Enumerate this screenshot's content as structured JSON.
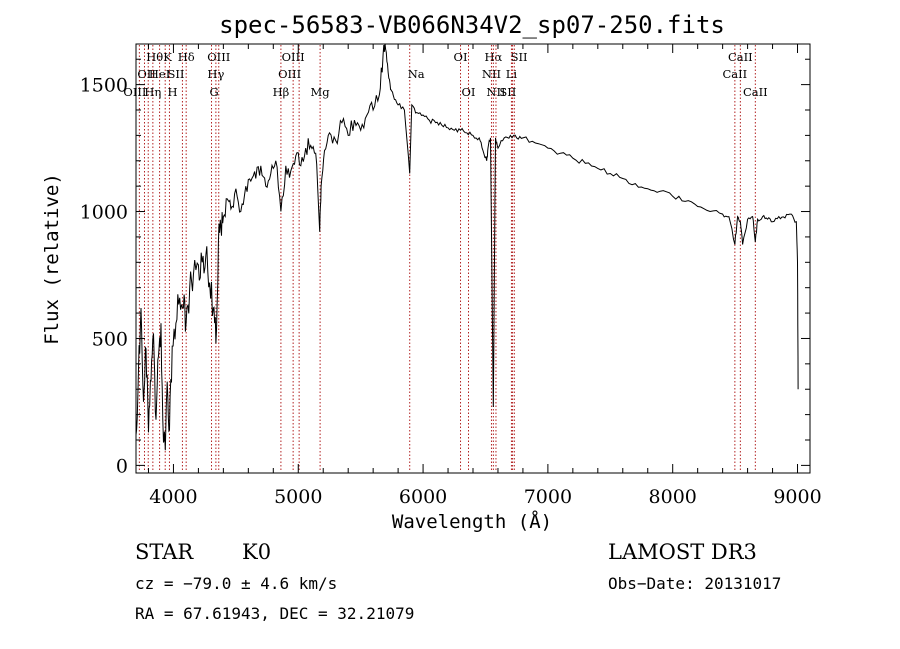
{
  "chart_data": {
    "type": "line",
    "title": "spec-56583-VB066N34V2_sp07-250.fits",
    "xlabel": "Wavelength (Å)",
    "ylabel": "Flux (relative)",
    "xlim": [
      3700,
      9100
    ],
    "ylim": [
      -30,
      1660
    ],
    "xticks": [
      4000,
      5000,
      6000,
      7000,
      8000,
      9000
    ],
    "yticks": [
      0,
      500,
      1000,
      1500
    ],
    "spectrum": {
      "x": [
        3700,
        3720,
        3740,
        3760,
        3780,
        3800,
        3820,
        3840,
        3860,
        3880,
        3900,
        3920,
        3935,
        3950,
        3968,
        3990,
        4020,
        4050,
        4080,
        4101,
        4130,
        4160,
        4200,
        4230,
        4260,
        4290,
        4320,
        4340,
        4360,
        4380,
        4400,
        4430,
        4460,
        4500,
        4540,
        4580,
        4620,
        4660,
        4700,
        4740,
        4780,
        4820,
        4861,
        4900,
        4940,
        4980,
        5020,
        5060,
        5100,
        5140,
        5172,
        5183,
        5210,
        5250,
        5300,
        5350,
        5400,
        5450,
        5500,
        5550,
        5600,
        5650,
        5680,
        5700,
        5720,
        5740,
        5760,
        5800,
        5850,
        5893,
        5910,
        5950,
        6000,
        6050,
        6100,
        6150,
        6200,
        6250,
        6300,
        6350,
        6400,
        6450,
        6480,
        6510,
        6520,
        6540,
        6563,
        6580,
        6600,
        6650,
        6700,
        6750,
        6800,
        6900,
        7000,
        7100,
        7200,
        7300,
        7400,
        7500,
        7600,
        7700,
        7800,
        7900,
        8000,
        8100,
        8200,
        8300,
        8400,
        8450,
        8498,
        8520,
        8542,
        8560,
        8600,
        8640,
        8662,
        8680,
        8720,
        8760,
        8800,
        8850,
        8900,
        8950,
        8990,
        9000,
        9005
      ],
      "y": [
        120,
        380,
        620,
        250,
        460,
        130,
        330,
        520,
        180,
        430,
        560,
        90,
        60,
        330,
        140,
        470,
        560,
        660,
        620,
        560,
        700,
        750,
        790,
        800,
        830,
        720,
        620,
        480,
        880,
        940,
        980,
        1050,
        1010,
        1090,
        1000,
        1100,
        1120,
        1130,
        1180,
        1100,
        1150,
        1200,
        1000,
        1180,
        1160,
        1220,
        1180,
        1250,
        1260,
        1230,
        920,
        1100,
        1240,
        1310,
        1280,
        1350,
        1300,
        1360,
        1320,
        1380,
        1400,
        1460,
        1620,
        1640,
        1550,
        1480,
        1460,
        1420,
        1400,
        1150,
        1420,
        1390,
        1380,
        1360,
        1350,
        1340,
        1330,
        1320,
        1320,
        1310,
        1300,
        1290,
        1240,
        1200,
        1250,
        1290,
        230,
        1290,
        1250,
        1290,
        1300,
        1290,
        1290,
        1270,
        1250,
        1230,
        1210,
        1190,
        1170,
        1150,
        1130,
        1110,
        1090,
        1080,
        1060,
        1040,
        1020,
        1000,
        990,
        980,
        870,
        980,
        960,
        870,
        970,
        980,
        880,
        970,
        980,
        970,
        960,
        980,
        975,
        990,
        960,
        800,
        300
      ]
    },
    "spectral_lines": [
      {
        "label": "Hθ",
        "wavelength": 3798,
        "row": 1,
        "side": "right"
      },
      {
        "label": "K",
        "wavelength": 3934,
        "row": 1,
        "side": "right"
      },
      {
        "label": "Hδ",
        "wavelength": 4102,
        "row": 1,
        "side": "center"
      },
      {
        "label": "OIII",
        "wavelength": 4363,
        "row": 1,
        "side": "center"
      },
      {
        "label": "OIII",
        "wavelength": 4959,
        "row": 1,
        "side": "center"
      },
      {
        "label": "OI",
        "wavelength": 6300,
        "row": 1,
        "side": "center"
      },
      {
        "label": "Hα",
        "wavelength": 6563,
        "row": 1,
        "side": "center"
      },
      {
        "label": "SII",
        "wavelength": 6717,
        "row": 1,
        "side": "right"
      },
      {
        "label": "CaII",
        "wavelength": 8542,
        "row": 1,
        "side": "center"
      },
      {
        "label": "OII",
        "wavelength": 3727,
        "row": 2,
        "side": "right"
      },
      {
        "label": "HeI",
        "wavelength": 3889,
        "row": 2,
        "side": "center"
      },
      {
        "label": "SII",
        "wavelength": 4072,
        "row": 2,
        "side": "left"
      },
      {
        "label": "Hγ",
        "wavelength": 4340,
        "row": 2,
        "side": "center"
      },
      {
        "label": "OIII",
        "wavelength": 5007,
        "row": 2,
        "side": "left"
      },
      {
        "label": "Na",
        "wavelength": 5893,
        "row": 2,
        "side": "right"
      },
      {
        "label": "NII",
        "wavelength": 6548,
        "row": 2,
        "side": "center"
      },
      {
        "label": "Li",
        "wavelength": 6708,
        "row": 2,
        "side": "center"
      },
      {
        "label": "CaII",
        "wavelength": 8498,
        "row": 2,
        "side": "center"
      },
      {
        "label": "OIII",
        "wavelength": 3768,
        "row": 3,
        "side": "left"
      },
      {
        "label": "Hη",
        "wavelength": 3835,
        "row": 3,
        "side": "center"
      },
      {
        "label": "H",
        "wavelength": 3968,
        "row": 3,
        "side": "right"
      },
      {
        "label": "G",
        "wavelength": 4305,
        "row": 3,
        "side": "right"
      },
      {
        "label": "Hβ",
        "wavelength": 4861,
        "row": 3,
        "side": "center"
      },
      {
        "label": "Mg",
        "wavelength": 5175,
        "row": 3,
        "side": "center"
      },
      {
        "label": "OI",
        "wavelength": 6364,
        "row": 3,
        "side": "center"
      },
      {
        "label": "NII",
        "wavelength": 6584,
        "row": 3,
        "side": "center"
      },
      {
        "label": "SII",
        "wavelength": 6731,
        "row": 3,
        "side": "left"
      },
      {
        "label": "CaII",
        "wavelength": 8662,
        "row": 3,
        "side": "center"
      }
    ],
    "line_color": "#b22222",
    "spectrum_color": "#000000"
  },
  "info": {
    "object_class": "STAR",
    "subclass": "K0",
    "survey": "LAMOST DR3",
    "cz_line": "cz = −79.0 ± 4.6 km/s",
    "obs_date_line": "Obs−Date: 20131017",
    "radec_line": "RA =  67.61943, DEC =  32.21079"
  }
}
